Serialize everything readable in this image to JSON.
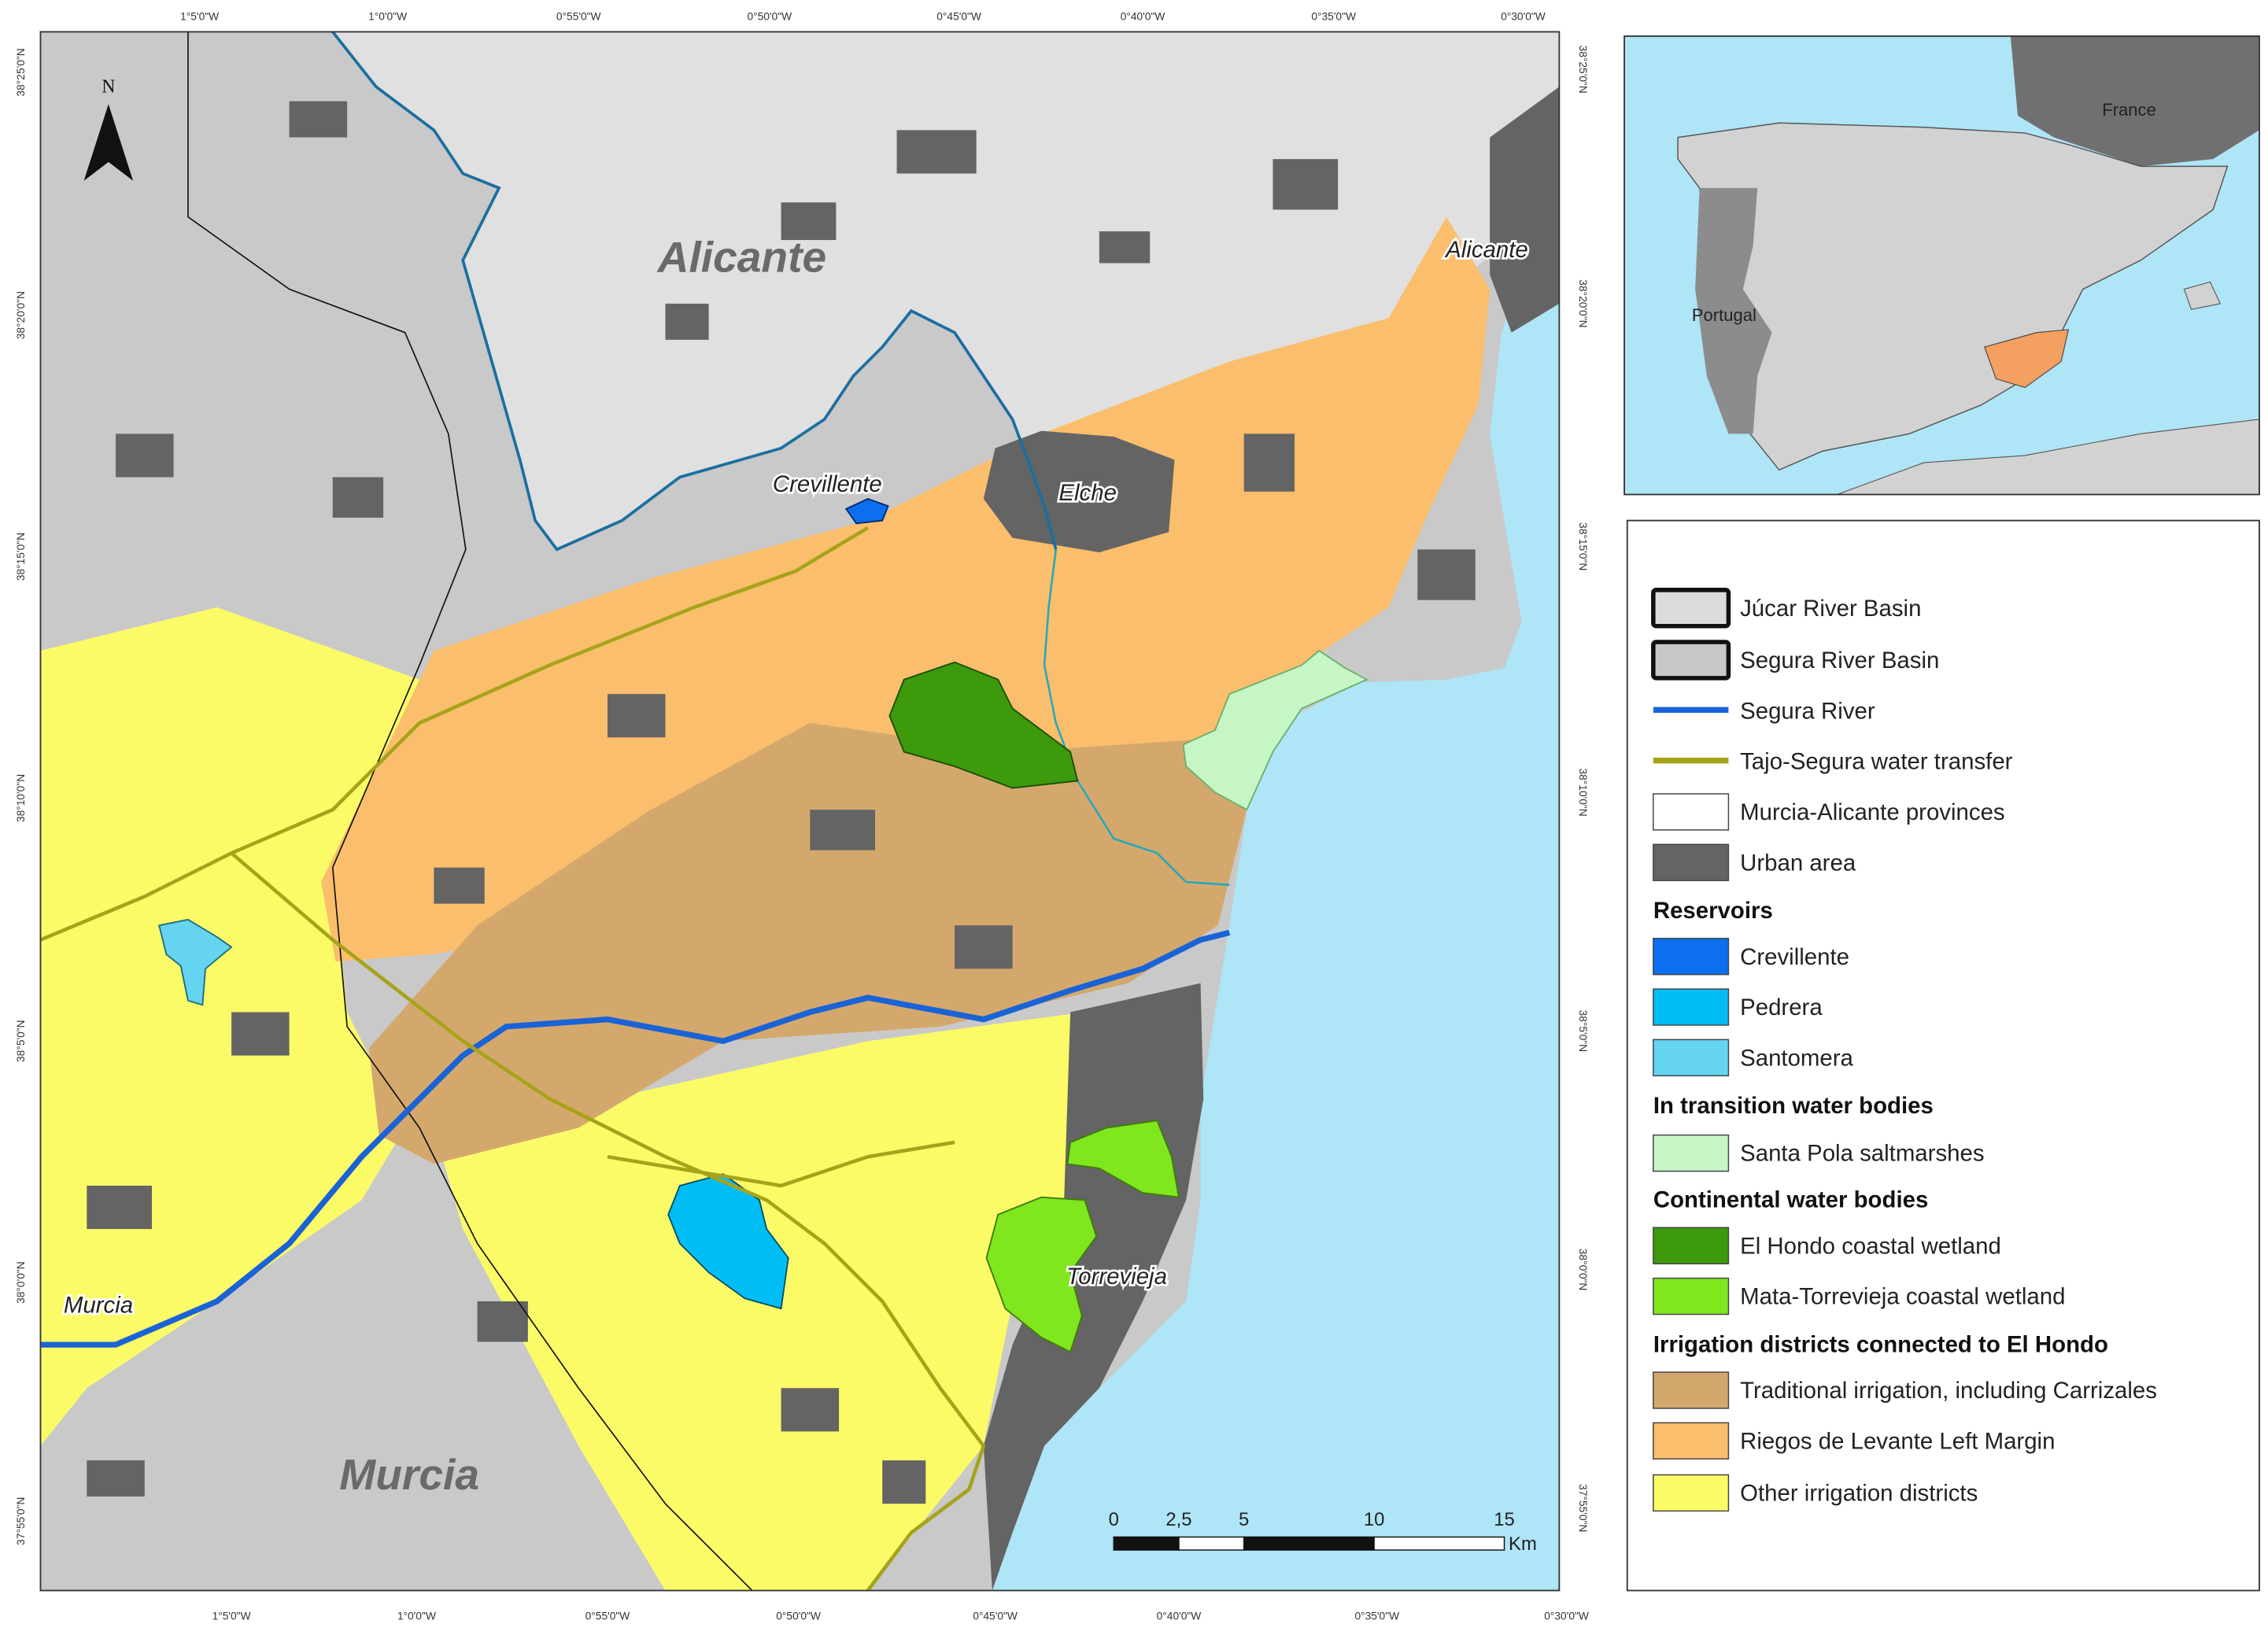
{
  "map": {
    "north": "N",
    "lon_labels_top": [
      "1°5'0\"W",
      "1°0'0\"W",
      "0°55'0\"W",
      "0°50'0\"W",
      "0°45'0\"W",
      "0°40'0\"W",
      "0°35'0\"W",
      "0°30'0\"W"
    ],
    "lon_labels_bottom": [
      "1°5'0\"W",
      "1°0'0\"W",
      "0°55'0\"W",
      "0°50'0\"W",
      "0°45'0\"W",
      "0°40'0\"W",
      "0°35'0\"W",
      "0°30'0\"W"
    ],
    "lat_labels_left": [
      "38°25'0\"N",
      "38°20'0\"N",
      "38°15'0\"N",
      "38°10'0\"N",
      "38°5'0\"N",
      "38°0'0\"N",
      "37°55'0\"N"
    ],
    "lat_labels_right": [
      "38°25'0\"N",
      "38°20'0\"N",
      "38°15'0\"N",
      "38°10'0\"N",
      "38°5'0\"N",
      "38°0'0\"N",
      "37°55'0\"N"
    ],
    "places": [
      {
        "label": "Alicante",
        "kind": "province"
      },
      {
        "label": "Alicante",
        "kind": "city"
      },
      {
        "label": "Crevillente",
        "kind": "city"
      },
      {
        "label": "Elche",
        "kind": "city"
      },
      {
        "label": "Torrevieja",
        "kind": "city"
      },
      {
        "label": "Murcia",
        "kind": "city"
      },
      {
        "label": "Murcia",
        "kind": "province"
      }
    ],
    "scale_bar": {
      "ticks": [
        "0",
        "2,5",
        "5",
        "10",
        "15"
      ],
      "unit": "Km"
    }
  },
  "inset": {
    "labels": [
      "France",
      "Portugal"
    ]
  },
  "legend": {
    "entries": [
      {
        "label": "Júcar River Basin",
        "symbol": "outline",
        "color": "#dcdcdc"
      },
      {
        "label": "Segura River Basin",
        "symbol": "outline",
        "color": "#c8c8c8"
      },
      {
        "label": "Segura River",
        "symbol": "line",
        "color": "#1a63d6"
      },
      {
        "label": "Tajo-Segura water transfer",
        "symbol": "line",
        "color": "#a6a31a"
      },
      {
        "label": "Murcia-Alicante provinces",
        "symbol": "box",
        "color": "#ffffff"
      },
      {
        "label": "Urban area",
        "symbol": "box",
        "color": "#646464"
      },
      {
        "label": "Reservoirs",
        "symbol": "heading"
      },
      {
        "label": "Crevillente",
        "symbol": "box",
        "color": "#0b6ff0"
      },
      {
        "label": "Pedrera",
        "symbol": "box",
        "color": "#00bef5"
      },
      {
        "label": "Santomera",
        "symbol": "box",
        "color": "#64d4f0"
      },
      {
        "label": "In transition water bodies",
        "symbol": "heading"
      },
      {
        "label": "Santa Pola saltmarshes",
        "symbol": "box",
        "color": "#c6f6c6"
      },
      {
        "label": "Continental water bodies",
        "symbol": "heading"
      },
      {
        "label": "El Hondo coastal wetland",
        "symbol": "box",
        "color": "#3c9a0c"
      },
      {
        "label": "Mata-Torrevieja coastal wetland",
        "symbol": "box",
        "color": "#80e61e"
      },
      {
        "label": "Irrigation districts connected to El Hondo",
        "symbol": "heading"
      },
      {
        "label": "Traditional irrigation, including Carrizales",
        "symbol": "box",
        "color": "#d4a86c"
      },
      {
        "label": "Riegos de Levante Left Margin",
        "symbol": "box",
        "color": "#fbbe6c"
      },
      {
        "label": "Other irrigation districts",
        "symbol": "box",
        "color": "#fbfb68"
      }
    ]
  }
}
